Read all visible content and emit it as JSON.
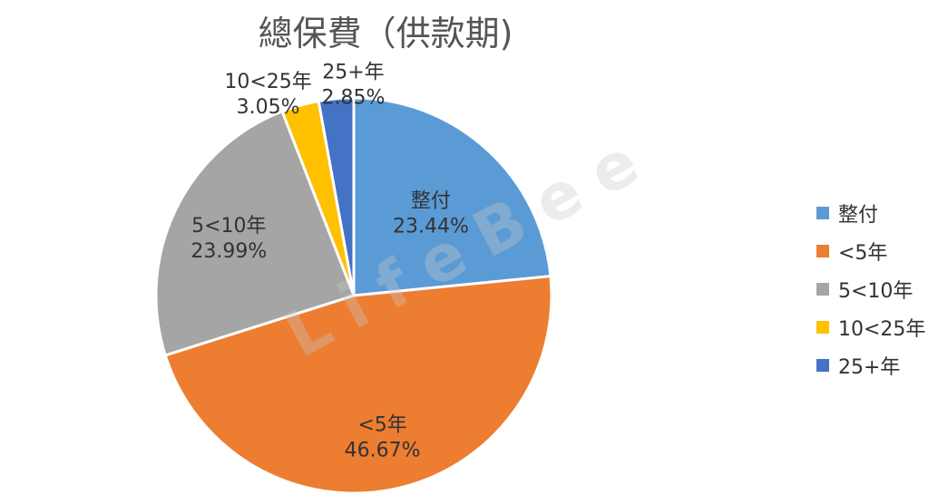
{
  "chart_data": {
    "type": "pie",
    "title": "總保費（供款期)",
    "categories": [
      "整付",
      "<5年",
      "5<10年",
      "10<25年",
      "25+年"
    ],
    "values": [
      23.44,
      46.67,
      23.99,
      3.05,
      2.85
    ],
    "value_labels": [
      "23.44%",
      "46.67%",
      "23.99%",
      "3.05%",
      "2.85%"
    ],
    "colors": [
      "#5B9BD5",
      "#ED7D31",
      "#A5A5A5",
      "#FFC000",
      "#4472C4"
    ],
    "legend_position": "right",
    "start_angle": "12 o'clock",
    "direction": "clockwise"
  },
  "watermark": "LifeBee"
}
